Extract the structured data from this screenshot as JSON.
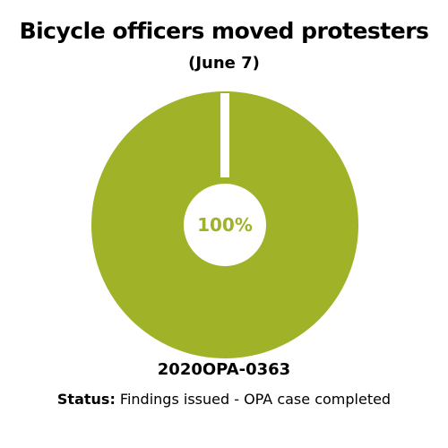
{
  "header": {
    "title": "Bicycle officers moved protesters",
    "subtitle": "(June 7)"
  },
  "footer": {
    "case_id": "2020OPA-0363",
    "status_label": "Status:",
    "status_text": " Findings issued - OPA case completed"
  },
  "colors": {
    "slice": "#a0b228",
    "hole": "#ffffff",
    "separator": "#ffffff"
  },
  "chart_data": {
    "type": "pie",
    "title": "Bicycle officers moved protesters",
    "subtitle": "(June 7)",
    "categories": [
      ""
    ],
    "values": [
      100
    ],
    "center_label": "100%"
  }
}
